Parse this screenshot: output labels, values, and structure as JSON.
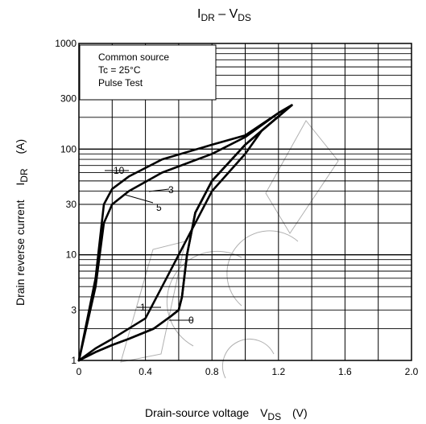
{
  "chart_data": {
    "type": "line",
    "title_main": "I",
    "title_sub1": "DR",
    "title_mid": " – V",
    "title_sub2": "DS",
    "xlabel_text": "Drain-source voltage",
    "xlabel_sym": "V",
    "xlabel_sub": "DS",
    "xlabel_unit": "(V)",
    "ylabel_text": "Drain reverse current",
    "ylabel_sym": "I",
    "ylabel_sub": "DR",
    "ylabel_unit": "(A)",
    "x_scale": "linear",
    "y_scale": "log",
    "xlim": [
      0,
      2.0
    ],
    "ylim": [
      1,
      1000
    ],
    "x_ticks": [
      "0",
      "0.4",
      "0.8",
      "1.2",
      "1.6",
      "2.0"
    ],
    "y_ticks": [
      "1",
      "3",
      "10",
      "30",
      "100",
      "300",
      "1000"
    ],
    "grid": true,
    "conditions": [
      "Common source",
      "Tc = 25°C",
      "Pulse Test"
    ],
    "series": [
      {
        "name": "10",
        "x": [
          0,
          0.1,
          0.15,
          0.2,
          0.3,
          0.5,
          0.8,
          1.0,
          1.2,
          1.28
        ],
        "y": [
          1,
          6,
          30,
          42,
          55,
          80,
          110,
          135,
          220,
          260
        ]
      },
      {
        "name": "5",
        "x": [
          0,
          0.1,
          0.15,
          0.2,
          0.3,
          0.5,
          0.8,
          1.0,
          1.2,
          1.28
        ],
        "y": [
          1,
          5,
          20,
          30,
          40,
          60,
          90,
          130,
          220,
          260
        ]
      },
      {
        "name": "3",
        "x": [
          0,
          0.1,
          0.2,
          0.4,
          0.5,
          0.6,
          0.8,
          1.0,
          1.1,
          1.28
        ],
        "y": [
          1,
          1.3,
          1.6,
          2.5,
          5,
          10,
          40,
          90,
          150,
          260
        ]
      },
      {
        "name": "1",
        "x": [
          0,
          0.1,
          0.2,
          0.3,
          0.45,
          0.55,
          0.6,
          0.62,
          0.65,
          0.7,
          0.8,
          1.0,
          1.28
        ],
        "y": [
          1,
          1.2,
          1.4,
          1.6,
          2,
          2.6,
          3,
          4,
          10,
          25,
          50,
          110,
          260
        ]
      },
      {
        "name": "0",
        "x": [
          0,
          0.1,
          0.2,
          0.3,
          0.45,
          0.55,
          0.6,
          0.62,
          0.65,
          0.7,
          0.8,
          1.0,
          1.28
        ],
        "y": [
          1,
          1.2,
          1.4,
          1.6,
          2,
          2.6,
          3,
          4,
          10,
          25,
          50,
          110,
          260
        ]
      }
    ]
  }
}
